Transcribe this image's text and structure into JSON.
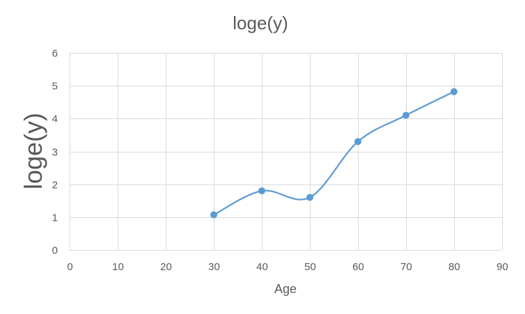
{
  "chart_data": {
    "type": "scatter",
    "title": "loge(y)",
    "xlabel": "Age",
    "ylabel": "loge(y)",
    "xlim": [
      0,
      90
    ],
    "ylim": [
      0,
      6
    ],
    "x_ticks": [
      0,
      10,
      20,
      30,
      40,
      50,
      60,
      70,
      80,
      90
    ],
    "y_ticks": [
      0,
      1,
      2,
      3,
      4,
      5,
      6
    ],
    "grid": true,
    "smooth_line": true,
    "series": [
      {
        "x": [
          30,
          40,
          50,
          60,
          70,
          80
        ],
        "y": [
          1.07,
          1.8,
          1.6,
          3.3,
          4.1,
          4.82
        ]
      }
    ],
    "colors": {
      "series": "#5B9BD5",
      "grid": "#D9D9D9",
      "text": "#595959",
      "title": "#595959"
    }
  }
}
